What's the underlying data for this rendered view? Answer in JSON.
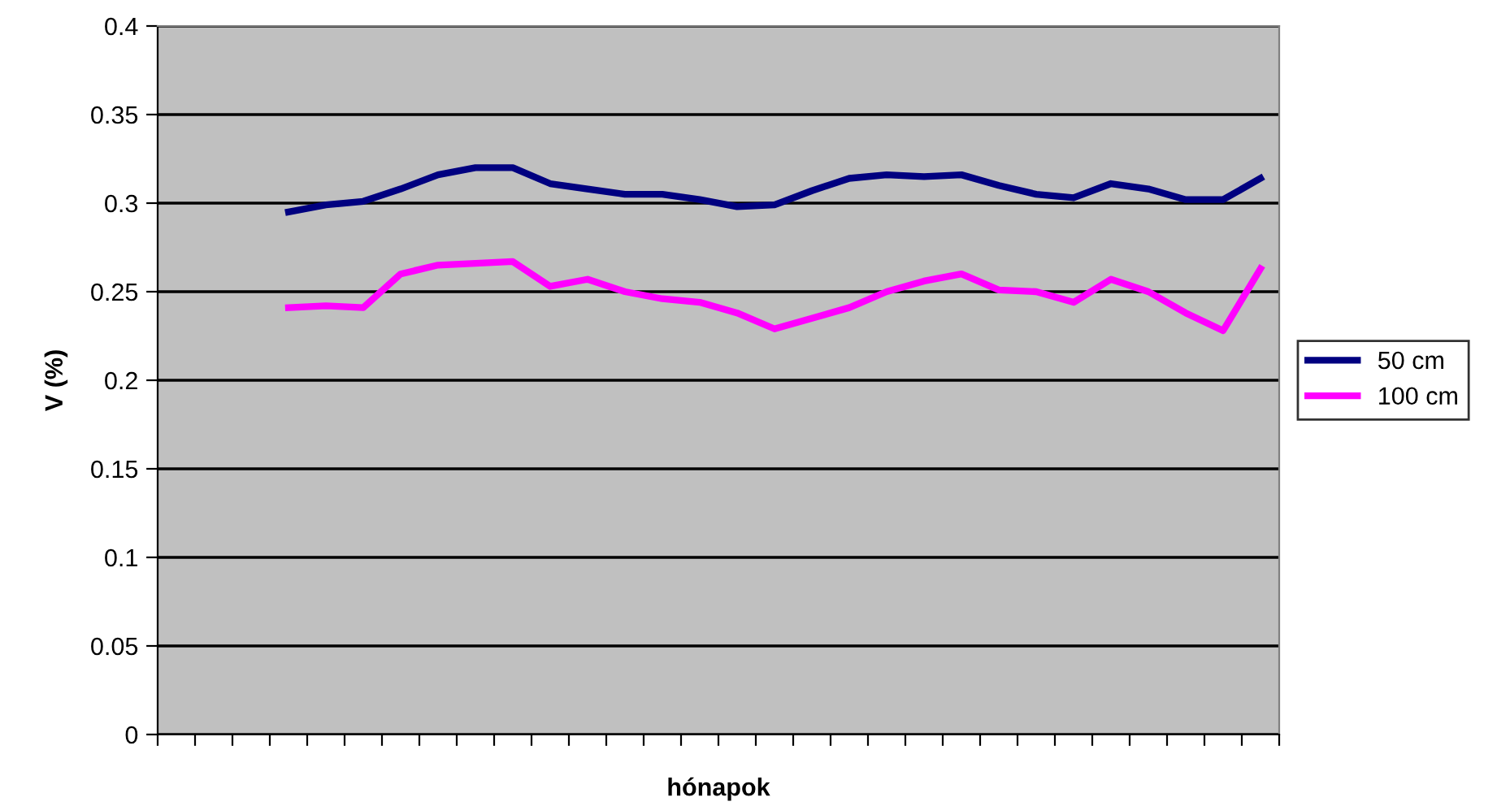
{
  "chart_data": {
    "type": "line",
    "xlabel": "hónapok",
    "ylabel": "V (%)",
    "categories": [
      null,
      null,
      null,
      null,
      null,
      null,
      null,
      null,
      null,
      null,
      null,
      null,
      null,
      null,
      null,
      null,
      null,
      null,
      null,
      null,
      null,
      null,
      null,
      null,
      null,
      null,
      null,
      null,
      null,
      null
    ],
    "series": [
      {
        "name": "50 cm",
        "color": "#000080",
        "values": [
          null,
          null,
          null,
          0.295,
          0.299,
          0.301,
          0.308,
          0.316,
          0.32,
          0.32,
          0.311,
          0.308,
          0.305,
          0.305,
          0.302,
          0.298,
          0.299,
          0.307,
          0.314,
          0.316,
          0.315,
          0.316,
          0.31,
          0.305,
          0.303,
          0.311,
          0.308,
          0.302,
          0.302,
          0.314
        ]
      },
      {
        "name": "100 cm",
        "color": "#ff00ff",
        "values": [
          null,
          null,
          null,
          0.241,
          0.242,
          0.241,
          0.26,
          0.265,
          0.266,
          0.267,
          0.253,
          0.257,
          0.25,
          0.246,
          0.244,
          0.238,
          0.229,
          0.235,
          0.241,
          0.25,
          0.256,
          0.26,
          0.251,
          0.25,
          0.244,
          0.257,
          0.25,
          0.238,
          0.228,
          0.263
        ]
      }
    ],
    "ylim": [
      0,
      0.4
    ],
    "yticks": [
      0,
      0.05,
      0.1,
      0.15,
      0.2,
      0.25,
      0.3,
      0.35,
      0.4
    ],
    "grid": "y",
    "legend": "right",
    "tick_labels": "y",
    "marker": "none",
    "line_style": "solid"
  }
}
